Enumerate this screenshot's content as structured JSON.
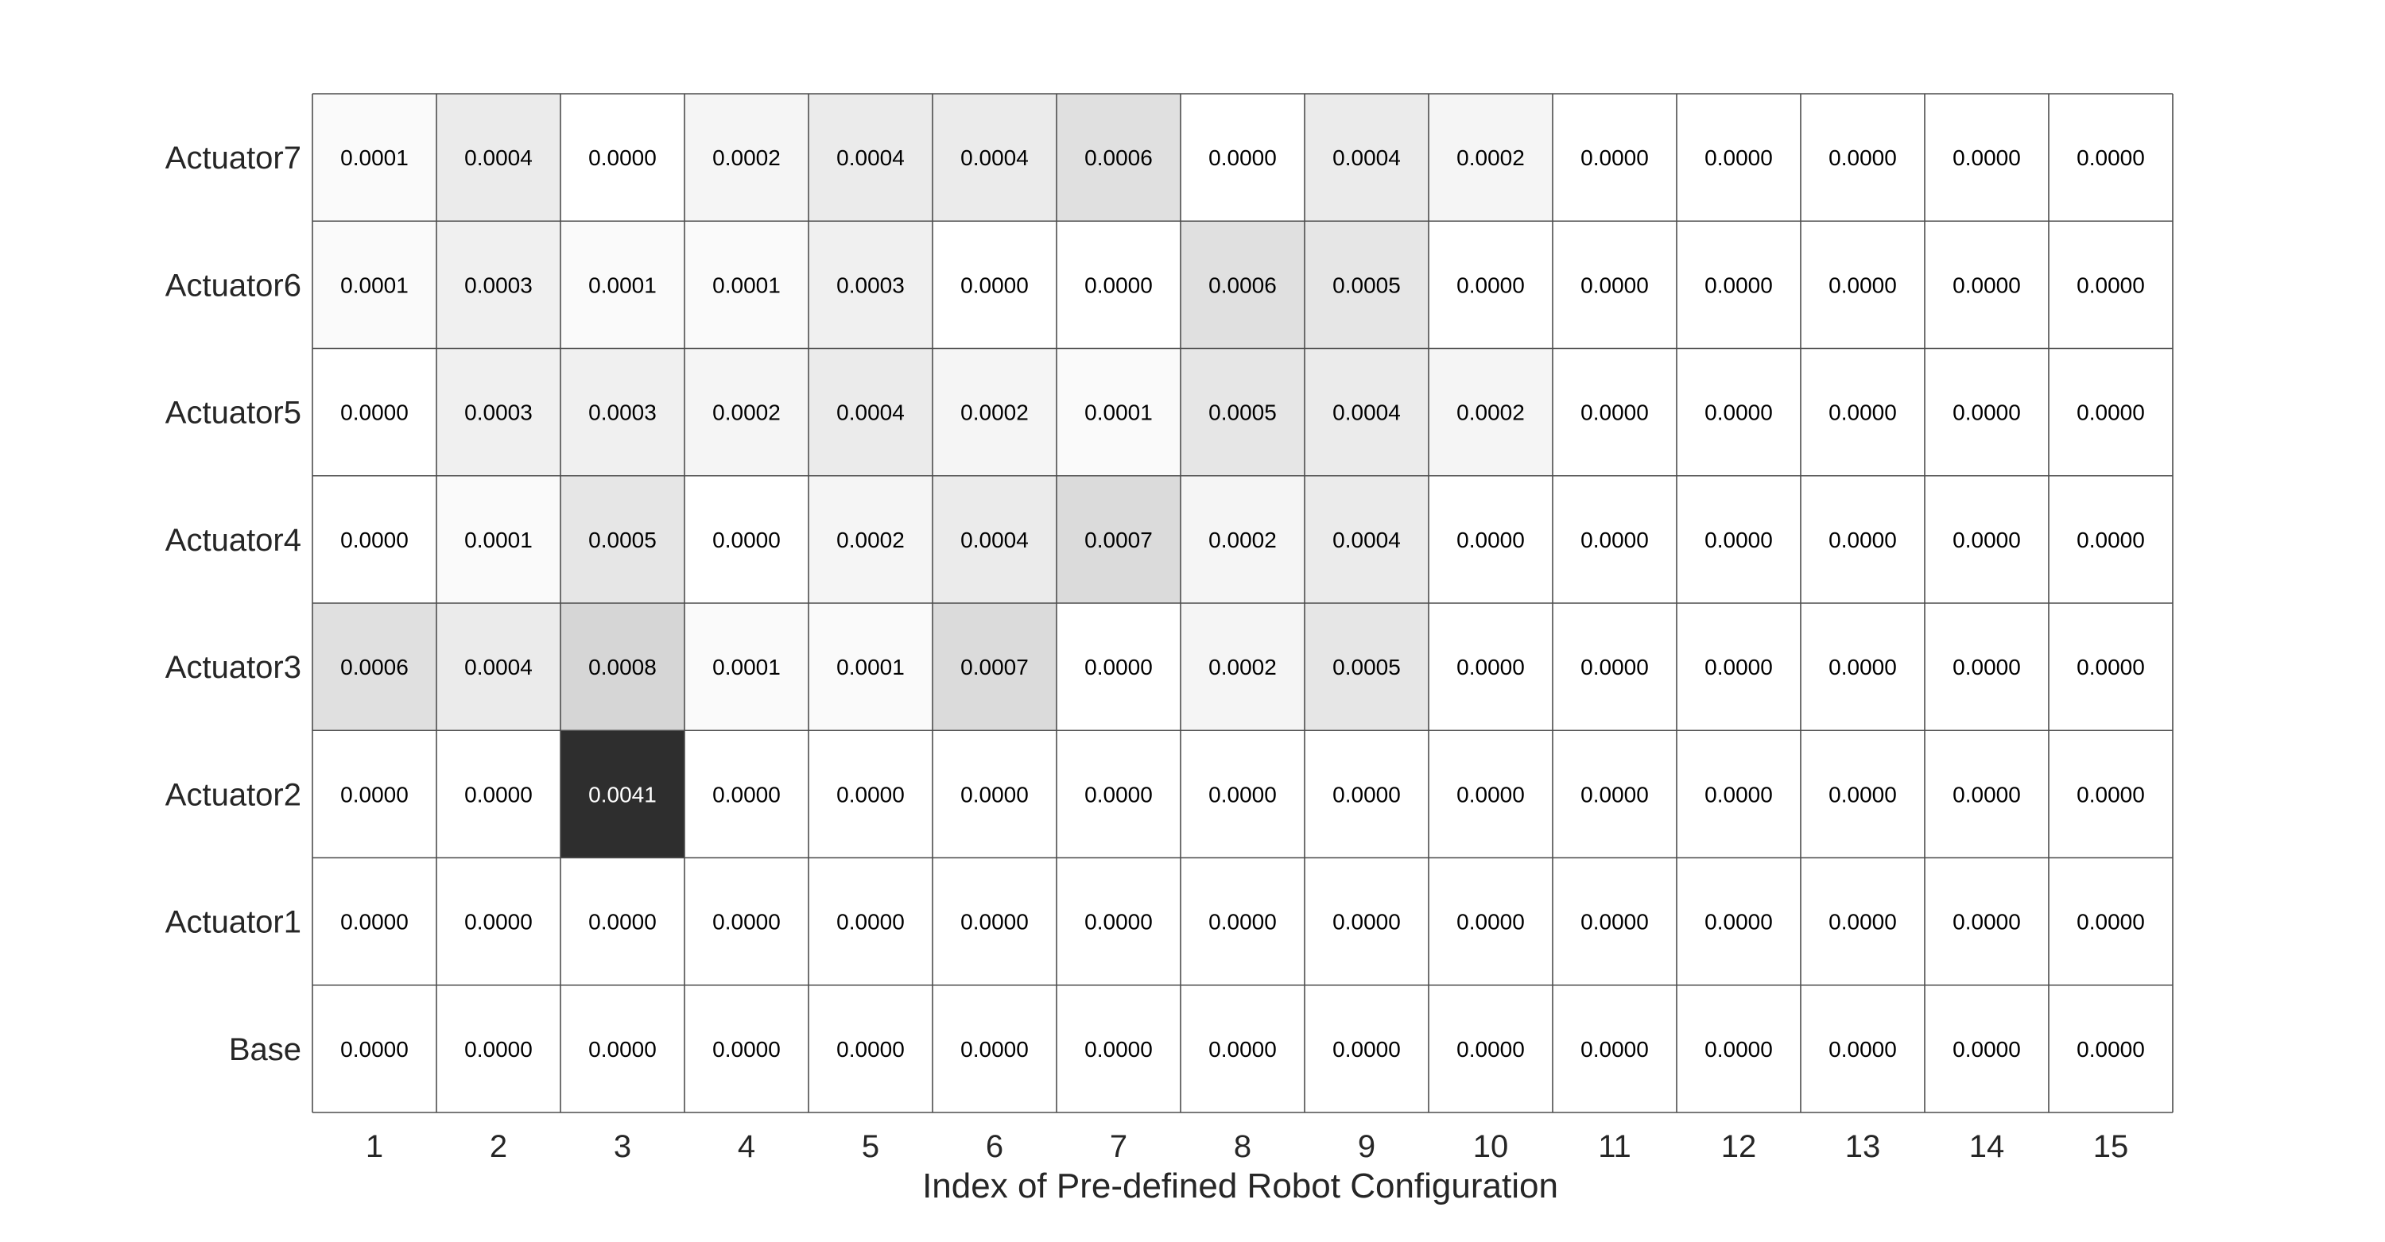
{
  "chart_data": {
    "type": "heatmap",
    "xlabel": "Index of Pre-defined Robot Configuration",
    "ylabel": "",
    "x_categories": [
      "1",
      "2",
      "3",
      "4",
      "5",
      "6",
      "7",
      "8",
      "9",
      "10",
      "11",
      "12",
      "13",
      "14",
      "15"
    ],
    "y_categories": [
      "Actuator7",
      "Actuator6",
      "Actuator5",
      "Actuator4",
      "Actuator3",
      "Actuator2",
      "Actuator1",
      "Base"
    ],
    "colormap": "gray-reversed",
    "color_range": [
      0,
      0.005
    ],
    "values": [
      [
        "0.0001",
        "0.0004",
        "0.0000",
        "0.0002",
        "0.0004",
        "0.0004",
        "0.0006",
        "0.0000",
        "0.0004",
        "0.0002",
        "0.0000",
        "0.0000",
        "0.0000",
        "0.0000",
        "0.0000"
      ],
      [
        "0.0001",
        "0.0003",
        "0.0001",
        "0.0001",
        "0.0003",
        "0.0000",
        "0.0000",
        "0.0006",
        "0.0005",
        "0.0000",
        "0.0000",
        "0.0000",
        "0.0000",
        "0.0000",
        "0.0000"
      ],
      [
        "0.0000",
        "0.0003",
        "0.0003",
        "0.0002",
        "0.0004",
        "0.0002",
        "0.0001",
        "0.0005",
        "0.0004",
        "0.0002",
        "0.0000",
        "0.0000",
        "0.0000",
        "0.0000",
        "0.0000"
      ],
      [
        "0.0000",
        "0.0001",
        "0.0005",
        "0.0000",
        "0.0002",
        "0.0004",
        "0.0007",
        "0.0002",
        "0.0004",
        "0.0000",
        "0.0000",
        "0.0000",
        "0.0000",
        "0.0000",
        "0.0000"
      ],
      [
        "0.0006",
        "0.0004",
        "0.0008",
        "0.0001",
        "0.0001",
        "0.0007",
        "0.0000",
        "0.0002",
        "0.0005",
        "0.0000",
        "0.0000",
        "0.0000",
        "0.0000",
        "0.0000",
        "0.0000"
      ],
      [
        "0.0000",
        "0.0000",
        "0.0041",
        "0.0000",
        "0.0000",
        "0.0000",
        "0.0000",
        "0.0000",
        "0.0000",
        "0.0000",
        "0.0000",
        "0.0000",
        "0.0000",
        "0.0000",
        "0.0000"
      ],
      [
        "0.0000",
        "0.0000",
        "0.0000",
        "0.0000",
        "0.0000",
        "0.0000",
        "0.0000",
        "0.0000",
        "0.0000",
        "0.0000",
        "0.0000",
        "0.0000",
        "0.0000",
        "0.0000",
        "0.0000"
      ],
      [
        "0.0000",
        "0.0000",
        "0.0000",
        "0.0000",
        "0.0000",
        "0.0000",
        "0.0000",
        "0.0000",
        "0.0000",
        "0.0000",
        "0.0000",
        "0.0000",
        "0.0000",
        "0.0000",
        "0.0000"
      ]
    ]
  }
}
